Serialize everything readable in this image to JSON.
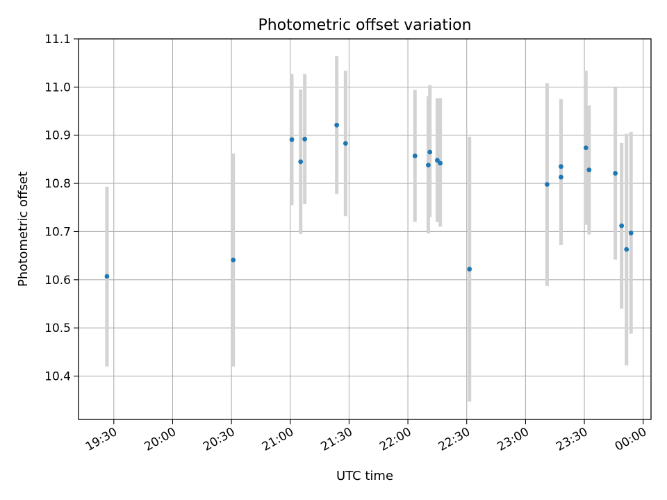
{
  "chart_data": {
    "type": "scatter",
    "title": "Photometric offset variation",
    "xlabel": "UTC time",
    "ylabel": "Photometric offset",
    "grid": true,
    "legend": "none",
    "xlim_minutes": [
      1152,
      1444
    ],
    "ylim": [
      10.31,
      11.1
    ],
    "x_ticks": [
      {
        "minutes": 1170,
        "label": "19:30"
      },
      {
        "minutes": 1200,
        "label": "20:00"
      },
      {
        "minutes": 1230,
        "label": "20:30"
      },
      {
        "minutes": 1260,
        "label": "21:00"
      },
      {
        "minutes": 1290,
        "label": "21:30"
      },
      {
        "minutes": 1320,
        "label": "22:00"
      },
      {
        "minutes": 1350,
        "label": "22:30"
      },
      {
        "minutes": 1380,
        "label": "23:00"
      },
      {
        "minutes": 1410,
        "label": "23:30"
      },
      {
        "minutes": 1440,
        "label": "00:00"
      }
    ],
    "y_ticks": [
      {
        "value": 10.4,
        "label": "10.4"
      },
      {
        "value": 10.5,
        "label": "10.5"
      },
      {
        "value": 10.6,
        "label": "10.6"
      },
      {
        "value": 10.7,
        "label": "10.7"
      },
      {
        "value": 10.8,
        "label": "10.8"
      },
      {
        "value": 10.9,
        "label": "10.9"
      },
      {
        "value": 11.0,
        "label": "11.0"
      },
      {
        "value": 11.1,
        "label": "11.1"
      }
    ],
    "series": [
      {
        "name": "offset",
        "point_color": "#1f77b4",
        "errorbar_color": "#d3d3d3",
        "points": [
          {
            "x": 1166.5,
            "y": 10.607,
            "yerr_low": 10.42,
            "yerr_high": 10.793
          },
          {
            "x": 1230.9,
            "y": 10.641,
            "yerr_low": 10.42,
            "yerr_high": 10.862
          },
          {
            "x": 1260.8,
            "y": 10.891,
            "yerr_low": 10.755,
            "yerr_high": 11.027
          },
          {
            "x": 1265.3,
            "y": 10.845,
            "yerr_low": 10.695,
            "yerr_high": 10.995
          },
          {
            "x": 1267.4,
            "y": 10.892,
            "yerr_low": 10.757,
            "yerr_high": 11.027
          },
          {
            "x": 1283.7,
            "y": 10.921,
            "yerr_low": 10.778,
            "yerr_high": 11.064
          },
          {
            "x": 1288.2,
            "y": 10.883,
            "yerr_low": 10.732,
            "yerr_high": 11.034
          },
          {
            "x": 1323.6,
            "y": 10.857,
            "yerr_low": 10.72,
            "yerr_high": 10.994
          },
          {
            "x": 1330.4,
            "y": 10.838,
            "yerr_low": 10.696,
            "yerr_high": 10.981
          },
          {
            "x": 1331.2,
            "y": 10.865,
            "yerr_low": 10.73,
            "yerr_high": 11.004
          },
          {
            "x": 1335.0,
            "y": 10.848,
            "yerr_low": 10.72,
            "yerr_high": 10.977
          },
          {
            "x": 1336.5,
            "y": 10.842,
            "yerr_low": 10.71,
            "yerr_high": 10.977
          },
          {
            "x": 1351.4,
            "y": 10.622,
            "yerr_low": 10.347,
            "yerr_high": 10.897
          },
          {
            "x": 1391.0,
            "y": 10.798,
            "yerr_low": 10.587,
            "yerr_high": 11.008
          },
          {
            "x": 1398.1,
            "y": 10.835,
            "yerr_low": 10.695,
            "yerr_high": 10.975
          },
          {
            "x": 1398.1,
            "y": 10.813,
            "yerr_low": 10.672,
            "yerr_high": 10.86
          },
          {
            "x": 1410.8,
            "y": 10.874,
            "yerr_low": 10.714,
            "yerr_high": 11.034
          },
          {
            "x": 1412.4,
            "y": 10.828,
            "yerr_low": 10.694,
            "yerr_high": 10.962
          },
          {
            "x": 1425.8,
            "y": 10.821,
            "yerr_low": 10.642,
            "yerr_high": 11.0
          },
          {
            "x": 1429.0,
            "y": 10.712,
            "yerr_low": 10.54,
            "yerr_high": 10.884
          },
          {
            "x": 1431.5,
            "y": 10.663,
            "yerr_low": 10.422,
            "yerr_high": 10.903
          },
          {
            "x": 1433.8,
            "y": 10.697,
            "yerr_low": 10.488,
            "yerr_high": 10.907
          }
        ]
      }
    ]
  }
}
